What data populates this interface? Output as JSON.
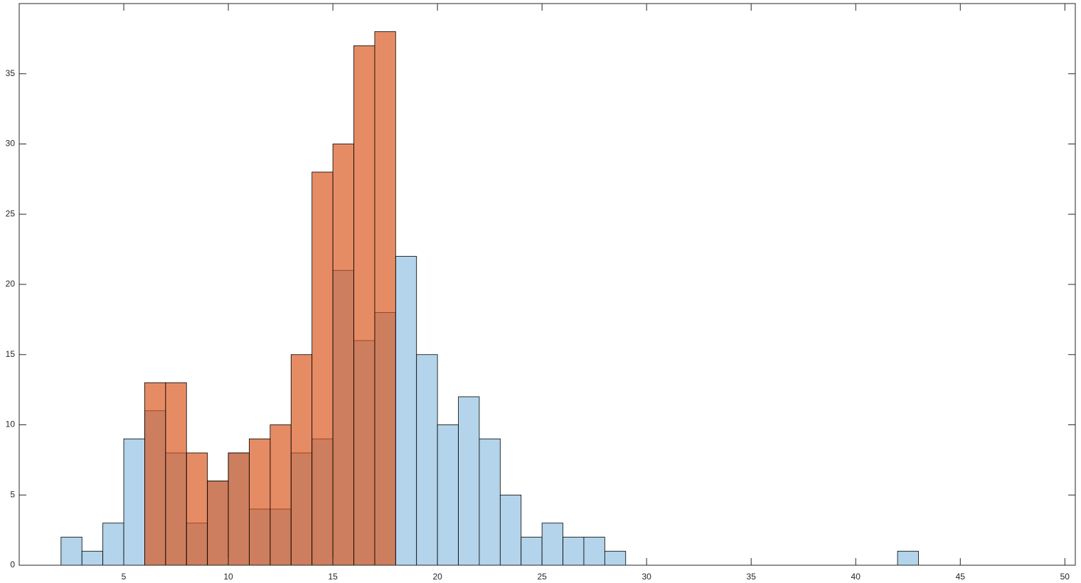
{
  "chart_data": {
    "type": "histogram",
    "series": [
      {
        "color": "#B3D4EA",
        "bins": [
          2,
          3,
          4,
          5,
          6,
          7,
          8,
          9,
          10,
          11,
          12,
          13,
          14,
          15,
          16,
          17,
          18,
          19,
          20,
          21,
          22,
          23,
          24,
          25,
          26,
          27,
          28,
          29,
          30,
          31,
          32,
          33,
          34,
          35,
          36,
          37,
          38,
          39,
          40,
          41,
          42,
          43
        ],
        "values": [
          2,
          1,
          3,
          9,
          11,
          8,
          3,
          6,
          8,
          4,
          4,
          8,
          9,
          21,
          16,
          18,
          22,
          15,
          10,
          12,
          9,
          5,
          2,
          3,
          2,
          2,
          1,
          0,
          0,
          0,
          0,
          0,
          0,
          0,
          0,
          0,
          0,
          0,
          0,
          0,
          1
        ]
      },
      {
        "color": "#D95319",
        "bins": [
          6,
          7,
          8,
          9,
          10,
          11,
          12,
          13,
          14,
          15,
          16,
          17,
          18
        ],
        "values": [
          13,
          13,
          8,
          6,
          8,
          9,
          10,
          15,
          28,
          30,
          37,
          38
        ]
      }
    ],
    "xlim": [
      0,
      50.5
    ],
    "ylim": [
      0,
      40
    ],
    "xticks": [
      5,
      10,
      15,
      20,
      25,
      30,
      35,
      40,
      45,
      50
    ],
    "yticks": [
      0,
      5,
      10,
      15,
      20,
      25,
      30,
      35
    ],
    "grid": false
  }
}
